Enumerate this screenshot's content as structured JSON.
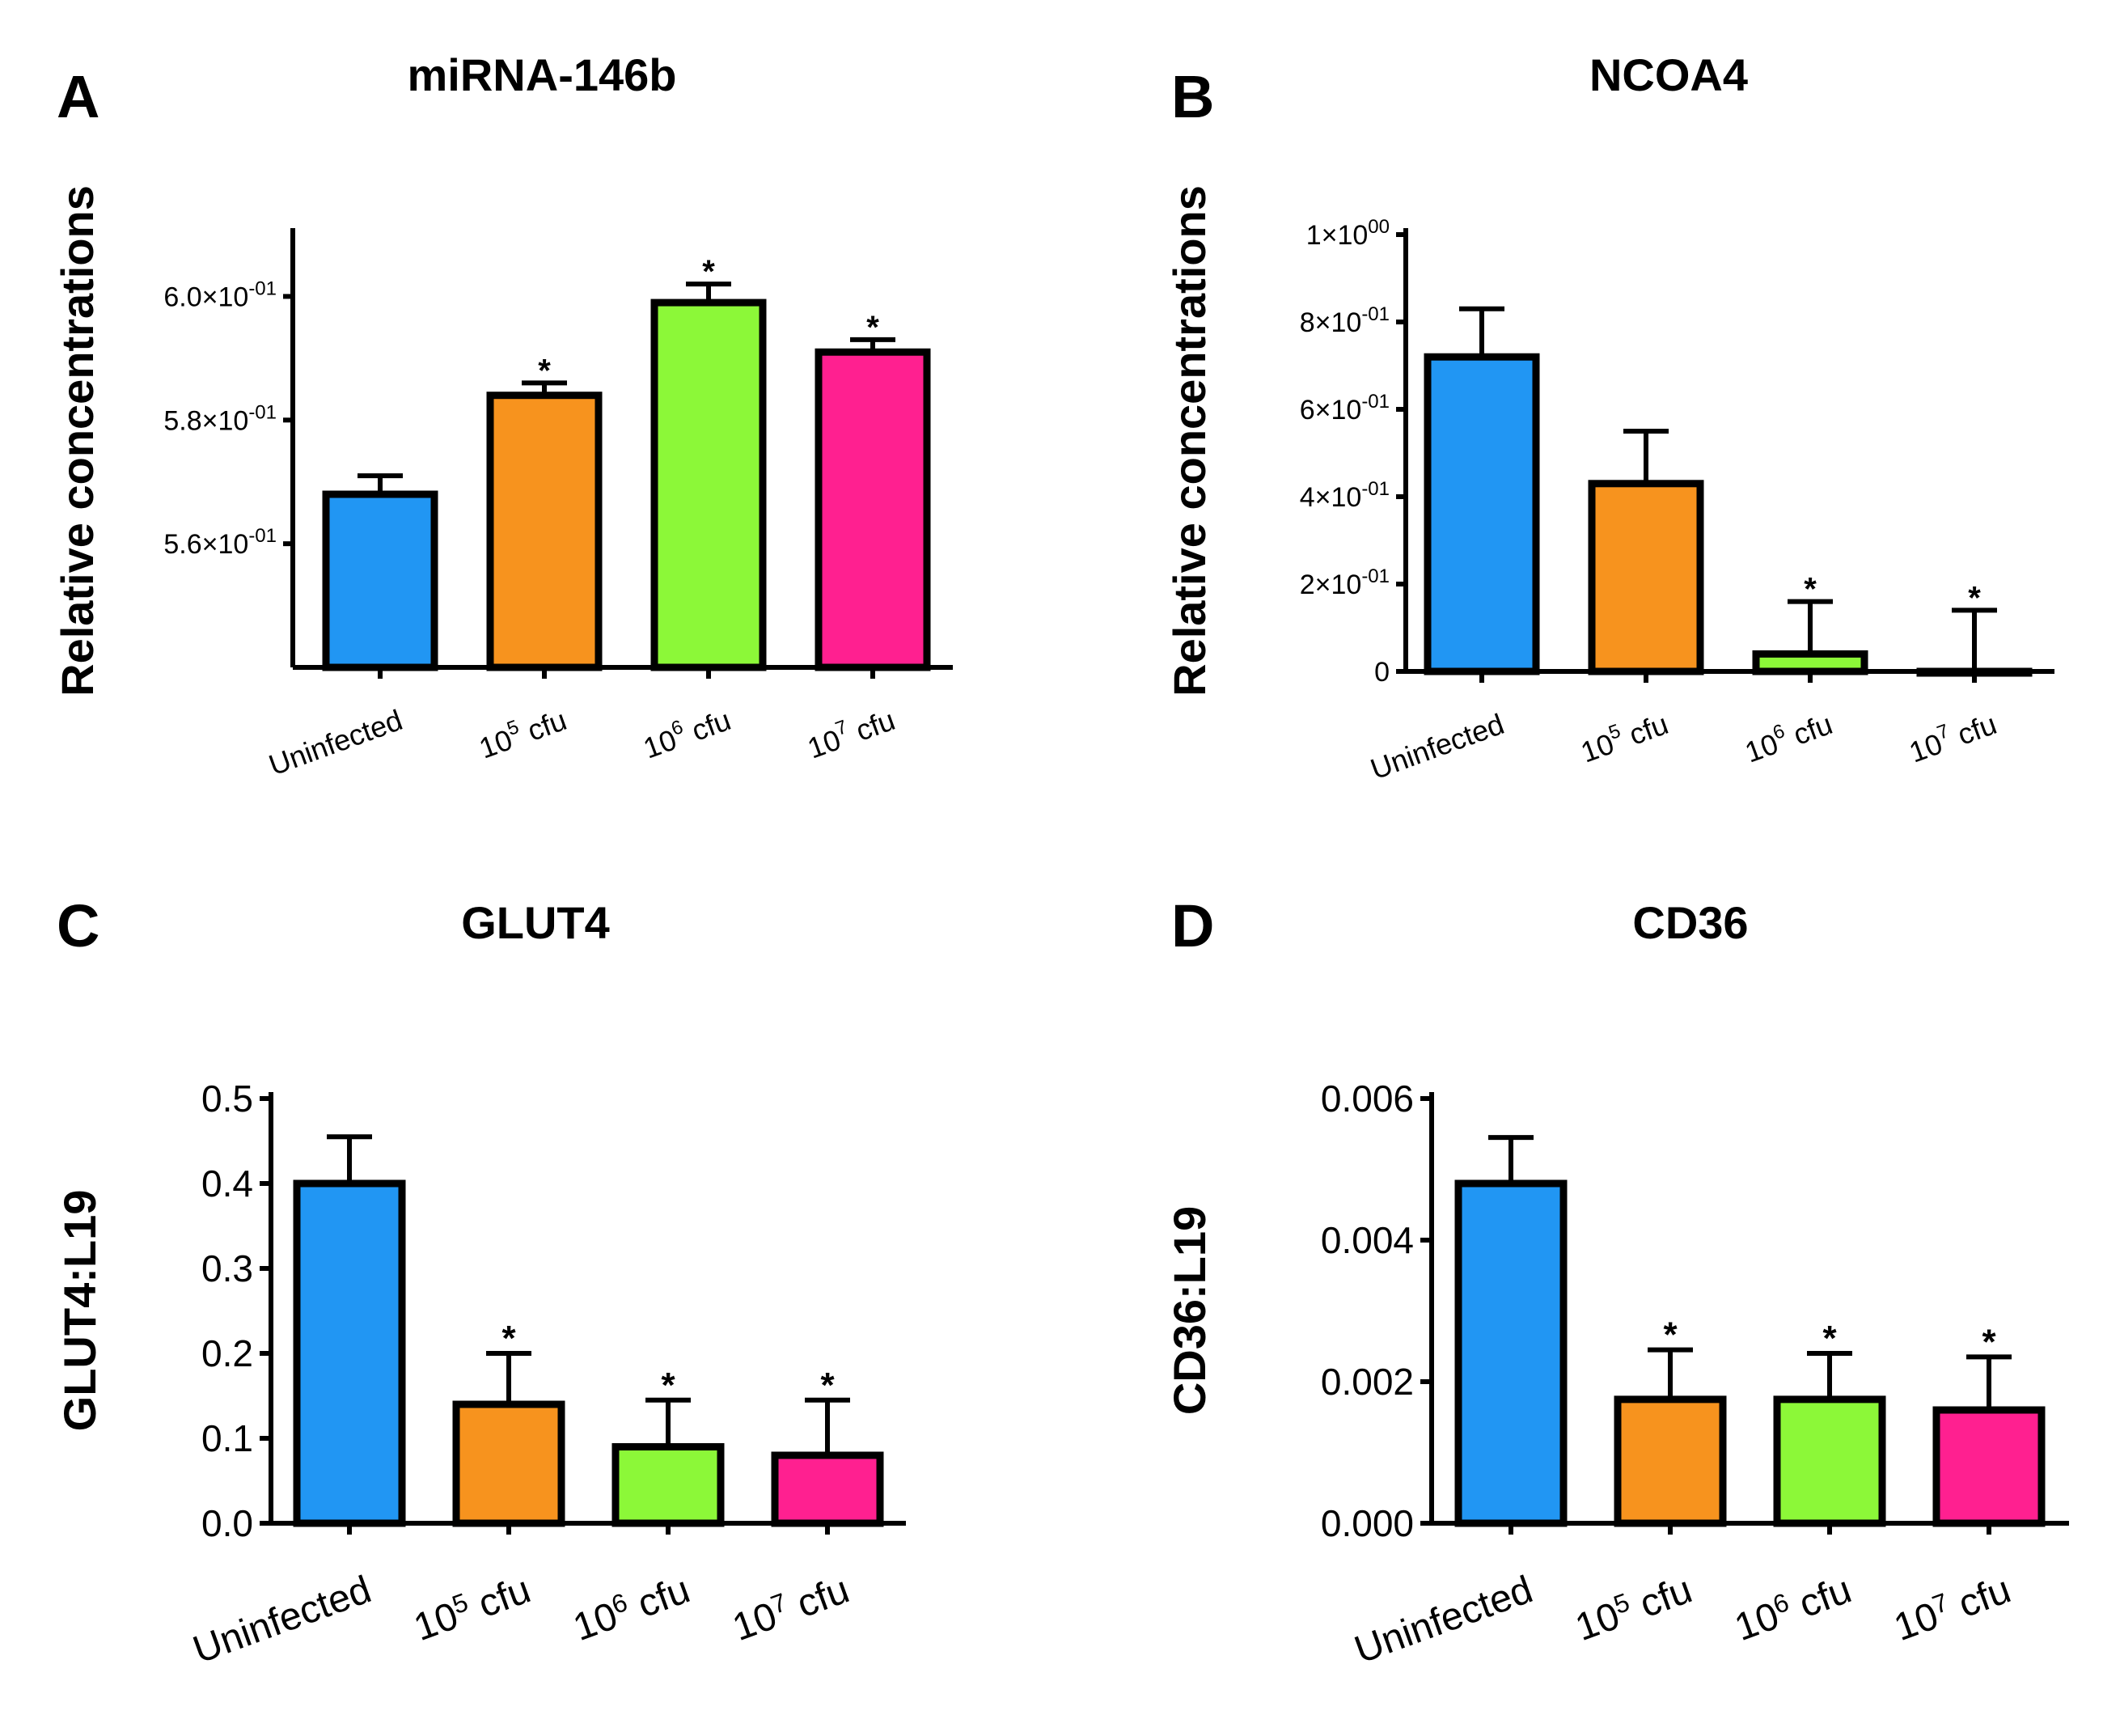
{
  "chart_data": [
    {
      "id": "A",
      "type": "bar",
      "panel_label": "A",
      "title": "miRNA-146b",
      "ylabel": "Relative concentrations",
      "xlabel": "",
      "categories": [
        {
          "base": "Uninfected",
          "sup": "",
          "rest": ""
        },
        {
          "base": "10",
          "sup": "5",
          "rest": " cfu"
        },
        {
          "base": "10",
          "sup": "6",
          "rest": " cfu"
        },
        {
          "base": "10",
          "sup": "7",
          "rest": " cfu"
        }
      ],
      "values": [
        0.568,
        0.584,
        0.599,
        0.591
      ],
      "errors": [
        0.003,
        0.002,
        0.003,
        0.002
      ],
      "significant": [
        false,
        true,
        true,
        true
      ],
      "significance_marker": "*",
      "colors": [
        "#2196F3",
        "#F7931E",
        "#8CF838",
        "#FF2090"
      ],
      "ylim": [
        0.54,
        0.61
      ],
      "yticks": [
        {
          "value": 0.56,
          "mantissa": "5.6×10",
          "exp": "-01"
        },
        {
          "value": 0.58,
          "mantissa": "5.8×10",
          "exp": "-01"
        },
        {
          "value": 0.6,
          "mantissa": "6.0×10",
          "exp": "-01"
        }
      ],
      "grid": false
    },
    {
      "id": "B",
      "type": "bar",
      "panel_label": "B",
      "title": "NCOA4",
      "ylabel": "Relative concentrations",
      "xlabel": "",
      "categories": [
        {
          "base": "Uninfected",
          "sup": "",
          "rest": ""
        },
        {
          "base": "10",
          "sup": "5",
          "rest": " cfu"
        },
        {
          "base": "10",
          "sup": "6",
          "rest": " cfu"
        },
        {
          "base": "10",
          "sup": "7",
          "rest": " cfu"
        }
      ],
      "values": [
        0.72,
        0.43,
        0.04,
        0.0
      ],
      "errors": [
        0.11,
        0.12,
        0.12,
        0.14
      ],
      "significant": [
        false,
        false,
        true,
        true
      ],
      "significance_marker": "*",
      "colors": [
        "#2196F3",
        "#F7931E",
        "#8CF838",
        "#FF2090"
      ],
      "ylim": [
        0,
        1.0
      ],
      "yticks": [
        {
          "value": 0,
          "mantissa": "0",
          "exp": ""
        },
        {
          "value": 0.2,
          "mantissa": "2×10",
          "exp": "-01"
        },
        {
          "value": 0.4,
          "mantissa": "4×10",
          "exp": "-01"
        },
        {
          "value": 0.6,
          "mantissa": "6×10",
          "exp": "-01"
        },
        {
          "value": 0.8,
          "mantissa": "8×10",
          "exp": "-01"
        },
        {
          "value": 1.0,
          "mantissa": "1×10",
          "exp": "00"
        }
      ],
      "grid": false
    },
    {
      "id": "C",
      "type": "bar",
      "panel_label": "C",
      "title": "GLUT4",
      "ylabel": "GLUT4:L19",
      "xlabel": "",
      "categories": [
        {
          "base": "Uninfected",
          "sup": "",
          "rest": ""
        },
        {
          "base": "10",
          "sup": "5",
          "rest": " cfu"
        },
        {
          "base": "10",
          "sup": "6",
          "rest": " cfu"
        },
        {
          "base": "10",
          "sup": "7",
          "rest": " cfu"
        }
      ],
      "values": [
        0.4,
        0.14,
        0.09,
        0.08
      ],
      "errors": [
        0.055,
        0.06,
        0.055,
        0.065
      ],
      "significant": [
        false,
        true,
        true,
        true
      ],
      "significance_marker": "*",
      "colors": [
        "#2196F3",
        "#F7931E",
        "#8CF838",
        "#FF2090"
      ],
      "ylim": [
        0,
        0.5
      ],
      "yticks": [
        {
          "value": 0.0,
          "mantissa": "0.0",
          "exp": ""
        },
        {
          "value": 0.1,
          "mantissa": "0.1",
          "exp": ""
        },
        {
          "value": 0.2,
          "mantissa": "0.2",
          "exp": ""
        },
        {
          "value": 0.3,
          "mantissa": "0.3",
          "exp": ""
        },
        {
          "value": 0.4,
          "mantissa": "0.4",
          "exp": ""
        },
        {
          "value": 0.5,
          "mantissa": "0.5",
          "exp": ""
        }
      ],
      "grid": false
    },
    {
      "id": "D",
      "type": "bar",
      "panel_label": "D",
      "title": "CD36",
      "ylabel": "CD36:L19",
      "xlabel": "",
      "categories": [
        {
          "base": "Uninfected",
          "sup": "",
          "rest": ""
        },
        {
          "base": "10",
          "sup": "5",
          "rest": " cfu"
        },
        {
          "base": "10",
          "sup": "6",
          "rest": " cfu"
        },
        {
          "base": "10",
          "sup": "7",
          "rest": " cfu"
        }
      ],
      "values": [
        0.0048,
        0.00175,
        0.00175,
        0.0016
      ],
      "errors": [
        0.00065,
        0.0007,
        0.00065,
        0.00075
      ],
      "significant": [
        false,
        true,
        true,
        true
      ],
      "significance_marker": "*",
      "colors": [
        "#2196F3",
        "#F7931E",
        "#8CF838",
        "#FF2090"
      ],
      "ylim": [
        0,
        0.006
      ],
      "yticks": [
        {
          "value": 0.0,
          "mantissa": "0.000",
          "exp": ""
        },
        {
          "value": 0.002,
          "mantissa": "0.002",
          "exp": ""
        },
        {
          "value": 0.004,
          "mantissa": "0.004",
          "exp": ""
        },
        {
          "value": 0.006,
          "mantissa": "0.006",
          "exp": ""
        }
      ],
      "grid": false
    }
  ]
}
